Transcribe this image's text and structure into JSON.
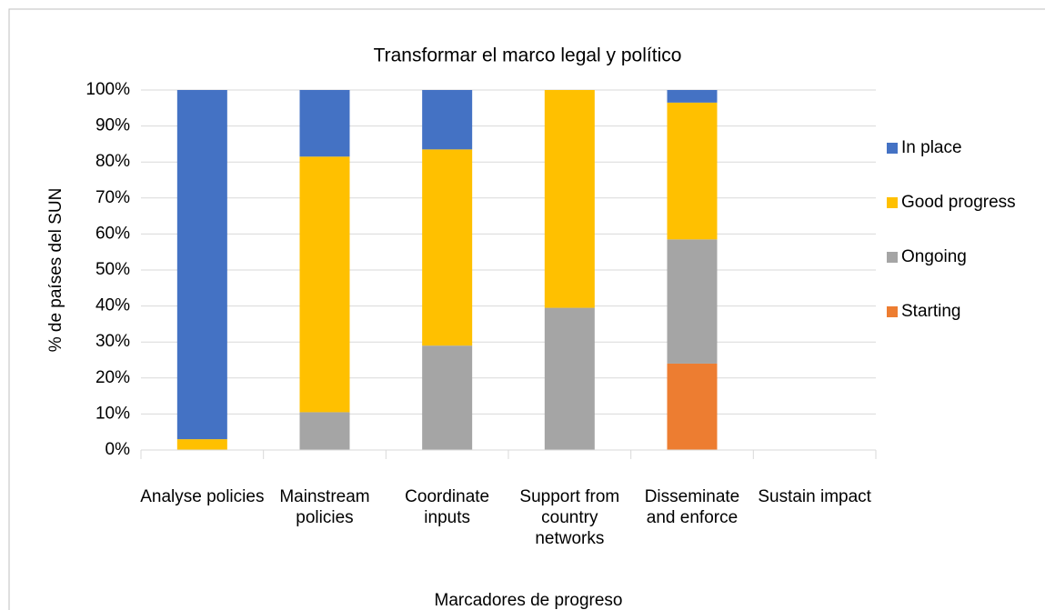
{
  "chart_data": {
    "type": "stacked_bar",
    "title": "Transformar el marco legal y político",
    "x_label": "Marcadores de progreso",
    "y_label": "% de países del SUN",
    "categories": [
      "Analyse policies",
      "Mainstream policies",
      "Coordinate inputs",
      "Support from country networks",
      "Disseminate and enforce",
      "Sustain impact"
    ],
    "series": [
      {
        "name": "Starting",
        "color": "#ed7d31",
        "values": [
          0,
          0,
          0,
          0,
          24,
          0
        ]
      },
      {
        "name": "Ongoing",
        "color": "#a5a5a5",
        "values": [
          0,
          10.5,
          29,
          39.5,
          34.5,
          0
        ]
      },
      {
        "name": "Good progress",
        "color": "#ffc000",
        "values": [
          3,
          71,
          54.5,
          60.5,
          38,
          0
        ]
      },
      {
        "name": "In place",
        "color": "#4472c4",
        "values": [
          97,
          18.5,
          16.5,
          0,
          3.5,
          0
        ]
      }
    ],
    "ylim": [
      0,
      100
    ],
    "yticks": [
      {
        "value": 0,
        "label": "0%"
      },
      {
        "value": 10,
        "label": "10%"
      },
      {
        "value": 20,
        "label": "20%"
      },
      {
        "value": 30,
        "label": "30%"
      },
      {
        "value": 40,
        "label": "40%"
      },
      {
        "value": 50,
        "label": "50%"
      },
      {
        "value": 60,
        "label": "60%"
      },
      {
        "value": 70,
        "label": "70%"
      },
      {
        "value": 80,
        "label": "80%"
      },
      {
        "value": 90,
        "label": "90%"
      },
      {
        "value": 100,
        "label": "100%"
      }
    ],
    "grid": true,
    "legend": "right"
  }
}
